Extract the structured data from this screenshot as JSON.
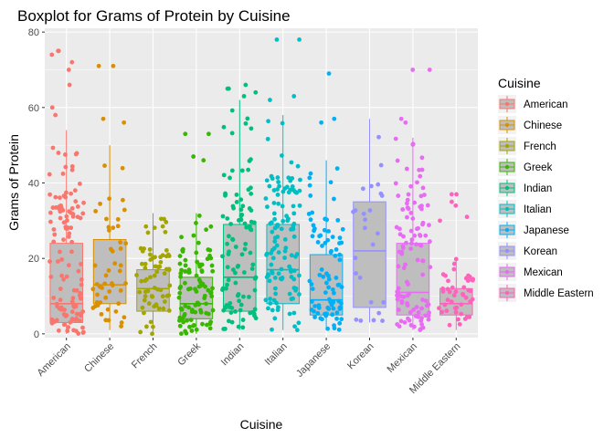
{
  "chart_data": {
    "type": "boxplot",
    "title": "Boxplot for Grams of Protein by Cuisine",
    "xlabel": "Cuisine",
    "ylabel": "Grams of Protein",
    "ylim": [
      -1,
      81
    ],
    "yticks": [
      0,
      20,
      40,
      60,
      80
    ],
    "grid": true,
    "legend": {
      "title": "Cuisine",
      "placement": "right"
    },
    "categories": [
      "American",
      "Chinese",
      "French",
      "Greek",
      "Indian",
      "Italian",
      "Japanese",
      "Korean",
      "Mexican",
      "Middle Eastern"
    ],
    "colors": [
      "#F8766D",
      "#D89000",
      "#A3A500",
      "#39B600",
      "#00BF7D",
      "#00BFC4",
      "#00B0F6",
      "#9590FF",
      "#E76BF3",
      "#FF62BC"
    ],
    "box_fill": "#bebebe",
    "boxes": [
      {
        "q1": 3,
        "median": 8,
        "q3": 24,
        "whisker_low": 0,
        "whisker_high": 54
      },
      {
        "q1": 8,
        "median": 13,
        "q3": 25,
        "whisker_low": 1,
        "whisker_high": 50
      },
      {
        "q1": 6,
        "median": 12,
        "q3": 17,
        "whisker_low": 0,
        "whisker_high": 32
      },
      {
        "q1": 4,
        "median": 8,
        "q3": 15,
        "whisker_low": 0,
        "whisker_high": 32
      },
      {
        "q1": 6,
        "median": 15,
        "q3": 29,
        "whisker_low": 1,
        "whisker_high": 62
      },
      {
        "q1": 8,
        "median": 17,
        "q3": 29,
        "whisker_low": 1,
        "whisker_high": 58
      },
      {
        "q1": 5,
        "median": 9,
        "q3": 21,
        "whisker_low": 1,
        "whisker_high": 46
      },
      {
        "q1": 7,
        "median": 22,
        "q3": 35,
        "whisker_low": 3,
        "whisker_high": 57
      },
      {
        "q1": 5,
        "median": 11,
        "q3": 24,
        "whisker_low": 1,
        "whisker_high": 52
      },
      {
        "q1": 5,
        "median": 8,
        "q3": 12,
        "whisker_low": 1,
        "whisker_high": 20
      }
    ],
    "outliers": [
      [
        66,
        70,
        72,
        74,
        75,
        75,
        60,
        58
      ],
      [
        56,
        57,
        71,
        71
      ],
      [],
      [
        46,
        47,
        53,
        53
      ],
      [
        63,
        64,
        65,
        65,
        66
      ],
      [
        62,
        63,
        78,
        78
      ],
      [
        56,
        57,
        69
      ],
      [],
      [
        56,
        57,
        70,
        70
      ],
      [
        30,
        31,
        34,
        35,
        37,
        37
      ]
    ],
    "point_counts": [
      120,
      50,
      70,
      100,
      100,
      120,
      90,
      25,
      110,
      45
    ]
  }
}
